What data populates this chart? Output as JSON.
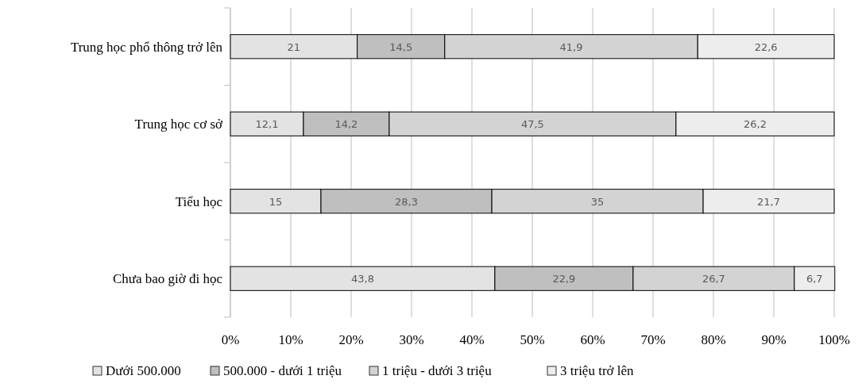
{
  "chart_data": {
    "type": "bar",
    "orientation": "horizontal",
    "stacked": true,
    "categories": [
      "Trung học phổ thông trở lên",
      "Trung học cơ sở",
      "Tiểu học",
      "Chưa bao giờ đi học"
    ],
    "series": [
      {
        "name": "Dưới 500.000",
        "color": "#e3e3e3",
        "values": [
          21,
          12.1,
          15,
          43.8
        ],
        "value_labels": [
          "21",
          "12,1",
          "15",
          "43,8"
        ]
      },
      {
        "name": "500.000 - dưới 1 triệu",
        "color": "#bfbfbf",
        "values": [
          14.5,
          14.2,
          28.3,
          22.9
        ],
        "value_labels": [
          "14,5",
          "14,2",
          "28,3",
          "22,9"
        ]
      },
      {
        "name": "1 triệu - dưới 3 triệu",
        "color": "#d3d3d3",
        "values": [
          41.9,
          47.5,
          35,
          26.7
        ],
        "value_labels": [
          "41,9",
          "47,5",
          "35",
          "26,7"
        ]
      },
      {
        "name": "3 triệu trở lên",
        "color": "#ededed",
        "values": [
          22.6,
          26.2,
          21.7,
          6.7
        ],
        "value_labels": [
          "22,6",
          "26,2",
          "21,7",
          "6,7"
        ]
      }
    ],
    "xlim": [
      0,
      100
    ],
    "xticks": [
      {
        "value": 0,
        "label": "0%"
      },
      {
        "value": 10,
        "label": "10%"
      },
      {
        "value": 20,
        "label": "20%"
      },
      {
        "value": 30,
        "label": "30%"
      },
      {
        "value": 40,
        "label": "40%"
      },
      {
        "value": 50,
        "label": "50%"
      },
      {
        "value": 60,
        "label": "60%"
      },
      {
        "value": 70,
        "label": "70%"
      },
      {
        "value": 80,
        "label": "80%"
      },
      {
        "value": 90,
        "label": "90%"
      },
      {
        "value": 100,
        "label": "100%"
      }
    ],
    "grid": "x",
    "legend": "bottom"
  }
}
